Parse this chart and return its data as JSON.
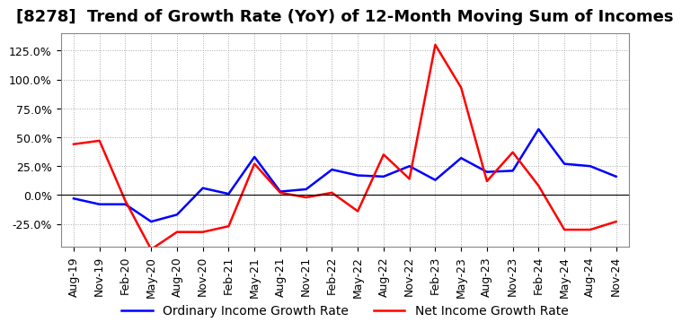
{
  "title": "[8278]  Trend of Growth Rate (YoY) of 12-Month Moving Sum of Incomes",
  "x_labels": [
    "Aug-19",
    "Nov-19",
    "Feb-20",
    "May-20",
    "Aug-20",
    "Nov-20",
    "Feb-21",
    "May-21",
    "Aug-21",
    "Nov-21",
    "Feb-22",
    "May-22",
    "Aug-22",
    "Nov-22",
    "Feb-23",
    "May-23",
    "Aug-23",
    "Nov-23",
    "Feb-24",
    "May-24",
    "Aug-24",
    "Nov-24"
  ],
  "ordinary_income": [
    -0.03,
    -0.08,
    -0.08,
    -0.23,
    -0.17,
    0.06,
    0.01,
    0.33,
    0.03,
    0.05,
    0.22,
    0.17,
    0.16,
    0.25,
    0.13,
    0.32,
    0.2,
    0.21,
    0.57,
    0.27,
    0.25,
    0.16
  ],
  "net_income": [
    0.44,
    0.47,
    -0.05,
    -0.47,
    -0.32,
    -0.32,
    -0.27,
    0.27,
    0.02,
    -0.02,
    0.02,
    -0.14,
    0.35,
    0.14,
    1.3,
    0.93,
    0.12,
    0.37,
    0.08,
    -0.3,
    -0.3,
    -0.23
  ],
  "ylim": [
    -0.45,
    1.4
  ],
  "yticks": [
    -0.25,
    0.0,
    0.25,
    0.5,
    0.75,
    1.0,
    1.25
  ],
  "line_color_ordinary": "#0000ff",
  "line_color_net": "#ff0000",
  "legend_ordinary": "Ordinary Income Growth Rate",
  "legend_net": "Net Income Growth Rate",
  "bg_color": "#ffffff",
  "plot_bg_color": "#ffffff",
  "grid_color": "#aaaaaa",
  "title_fontsize": 13,
  "tick_fontsize": 9,
  "legend_fontsize": 10
}
